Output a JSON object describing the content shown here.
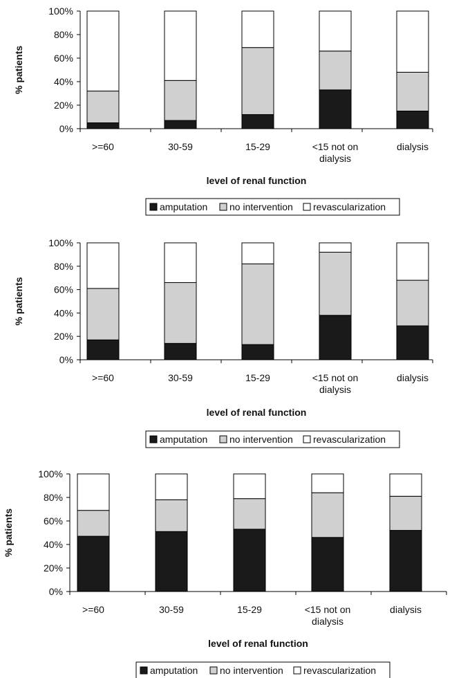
{
  "chart_data": [
    {
      "type": "bar",
      "stacked": true,
      "percent_stacked": true,
      "title": "",
      "xlabel": "level of renal function",
      "ylabel": "% patients",
      "ylim": [
        0,
        100
      ],
      "yticks": [
        "0%",
        "20%",
        "40%",
        "60%",
        "80%",
        "100%"
      ],
      "categories": [
        ">=60",
        "30-59",
        "15-29",
        "<15 not on dialysis",
        "dialysis"
      ],
      "category_lines": [
        [
          ">=60"
        ],
        [
          "30-59"
        ],
        [
          "15-29"
        ],
        [
          "<15 not on",
          "dialysis"
        ],
        [
          "dialysis"
        ]
      ],
      "series": [
        {
          "name": "amputation",
          "color": "#1a1a1a",
          "values": [
            5,
            7,
            12,
            33,
            15
          ]
        },
        {
          "name": "no intervention",
          "color": "#d0d0d0",
          "values": [
            27,
            34,
            57,
            33,
            33
          ]
        },
        {
          "name": "revascularization",
          "color": "#ffffff",
          "values": [
            68,
            59,
            31,
            34,
            52
          ]
        }
      ],
      "grid": false,
      "legend_position": "bottom"
    },
    {
      "type": "bar",
      "stacked": true,
      "percent_stacked": true,
      "title": "",
      "xlabel": "level of renal function",
      "ylabel": "% patients",
      "ylim": [
        0,
        100
      ],
      "yticks": [
        "0%",
        "20%",
        "40%",
        "60%",
        "80%",
        "100%"
      ],
      "categories": [
        ">=60",
        "30-59",
        "15-29",
        "<15 not on dialysis",
        "dialysis"
      ],
      "category_lines": [
        [
          ">=60"
        ],
        [
          "30-59"
        ],
        [
          "15-29"
        ],
        [
          "<15 not on",
          "dialysis"
        ],
        [
          "dialysis"
        ]
      ],
      "series": [
        {
          "name": "amputation",
          "color": "#1a1a1a",
          "values": [
            17,
            14,
            13,
            38,
            29
          ]
        },
        {
          "name": "no intervention",
          "color": "#d0d0d0",
          "values": [
            44,
            52,
            69,
            54,
            39
          ]
        },
        {
          "name": "revascularization",
          "color": "#ffffff",
          "values": [
            39,
            34,
            18,
            8,
            32
          ]
        }
      ],
      "grid": false,
      "legend_position": "bottom"
    },
    {
      "type": "bar",
      "stacked": true,
      "percent_stacked": true,
      "title": "",
      "xlabel": "level of renal function",
      "ylabel": "% patients",
      "ylim": [
        0,
        100
      ],
      "yticks": [
        "0%",
        "20%",
        "40%",
        "60%",
        "80%",
        "100%"
      ],
      "categories": [
        ">=60",
        "30-59",
        "15-29",
        "<15 not on dialysis",
        "dialysis"
      ],
      "category_lines": [
        [
          ">=60"
        ],
        [
          "30-59"
        ],
        [
          "15-29"
        ],
        [
          "<15 not on",
          "dialysis"
        ],
        [
          "dialysis"
        ]
      ],
      "series": [
        {
          "name": "amputation",
          "color": "#1a1a1a",
          "values": [
            47,
            51,
            53,
            46,
            52
          ]
        },
        {
          "name": "no intervention",
          "color": "#d0d0d0",
          "values": [
            22,
            27,
            26,
            38,
            29
          ]
        },
        {
          "name": "revascularization",
          "color": "#ffffff",
          "values": [
            31,
            22,
            21,
            16,
            19
          ]
        }
      ],
      "grid": false,
      "legend_position": "bottom"
    }
  ]
}
